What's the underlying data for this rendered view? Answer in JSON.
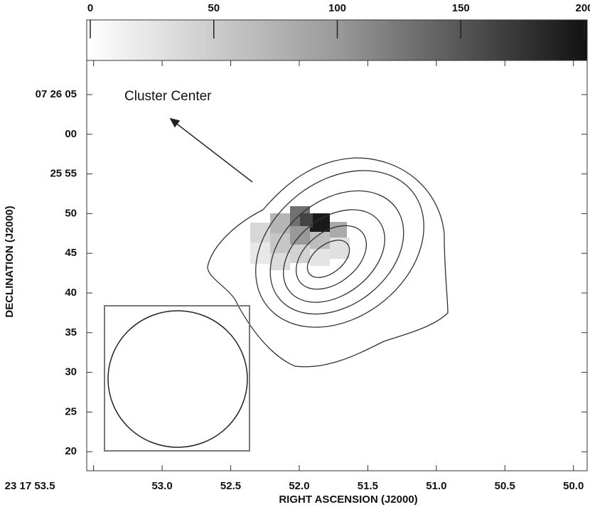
{
  "chart_data": {
    "type": "contour",
    "annotation": "Cluster Center",
    "xlabel": "RIGHT ASCENSION (J2000)",
    "ylabel": "DECLINATION (J2000)",
    "xlim": [
      53.55,
      49.9
    ],
    "xticks": [
      {
        "value": 53.5,
        "label": "23 17 53.5"
      },
      {
        "value": 53.0,
        "label": "53.0"
      },
      52.5,
      {
        "value": 52.0,
        "label": "52.0"
      },
      51.5,
      {
        "value": 51.0,
        "label": "51.0"
      },
      50.5,
      {
        "value": 50.0,
        "label": "50.0"
      }
    ],
    "ylim": [
      17.6,
      69.3
    ],
    "yticks": [
      20,
      25,
      30,
      35,
      40,
      45,
      50,
      {
        "value": 55,
        "label": "25 55"
      },
      {
        "value": 60,
        "label": "00"
      },
      {
        "value": 65,
        "label": "07 26 05"
      }
    ],
    "clim": [
      0,
      200
    ],
    "cticks": [
      0,
      50,
      100,
      150,
      200
    ]
  }
}
